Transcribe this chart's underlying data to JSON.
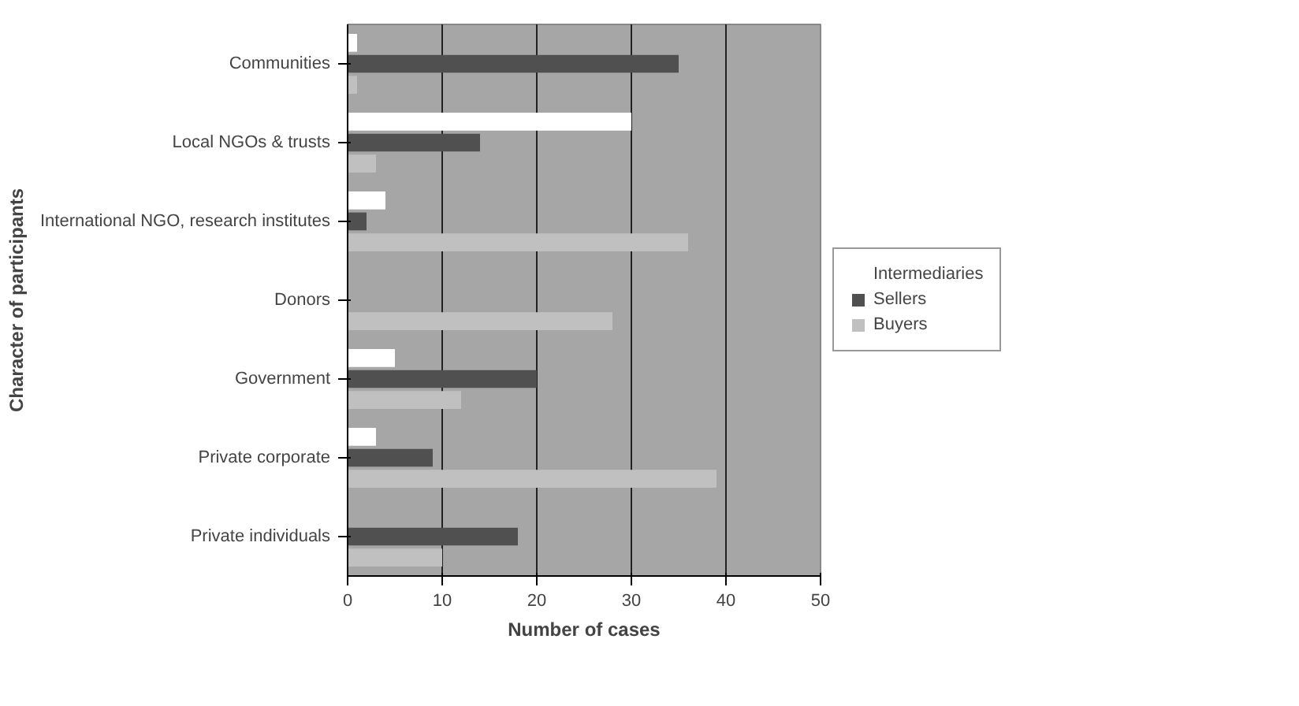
{
  "chart_data": {
    "type": "bar",
    "orientation": "horizontal",
    "xlabel": "Number of cases",
    "ylabel": "Character of participants",
    "categories": [
      "Communities",
      "Local NGOs & trusts",
      "International NGO, research institutes",
      "Donors",
      "Government",
      "Private corporate",
      "Private individuals"
    ],
    "series": [
      {
        "name": "Intermediaries",
        "color": "#ffffff",
        "values": [
          1,
          30,
          4,
          0,
          5,
          3,
          0
        ]
      },
      {
        "name": "Sellers",
        "color": "#505050",
        "values": [
          35,
          14,
          2,
          0,
          20,
          9,
          18
        ]
      },
      {
        "name": "Buyers",
        "color": "#c0c0c0",
        "values": [
          1,
          3,
          36,
          28,
          12,
          39,
          10
        ]
      }
    ],
    "xlim": [
      0,
      50
    ],
    "xticks": [
      0,
      10,
      20,
      30,
      40,
      50
    ],
    "grid": "x",
    "legend": "right"
  }
}
